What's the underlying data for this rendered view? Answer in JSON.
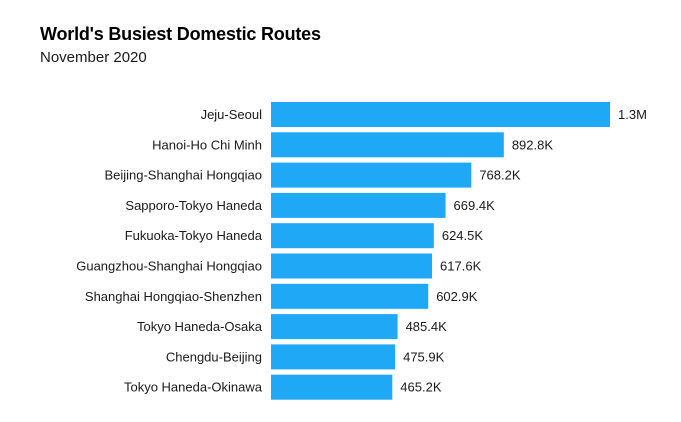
{
  "chart_data": {
    "type": "bar",
    "orientation": "horizontal",
    "title": "World's Busiest Domestic Routes",
    "subtitle": "November 2020",
    "categories": [
      "Jeju-Seoul",
      "Hanoi-Ho Chi Minh",
      "Beijing-Shanghai Hongqiao",
      "Sapporo-Tokyo Haneda",
      "Fukuoka-Tokyo Haneda",
      "Guangzhou-Shanghai Hongqiao",
      "Shanghai Hongqiao-Shenzhen",
      "Tokyo Haneda-Osaka",
      "Chengdu-Beijing",
      "Tokyo Haneda-Okinawa"
    ],
    "values": [
      1300000,
      892800,
      768200,
      669400,
      624500,
      617600,
      602900,
      485400,
      475900,
      465200
    ],
    "data_labels": [
      "1.3M",
      "892.8K",
      "768.2K",
      "669.4K",
      "624.5K",
      "617.6K",
      "602.9K",
      "485.4K",
      "475.9K",
      "465.2K"
    ],
    "bar_color": "#1ea8f5",
    "xlim": [
      0,
      1300000
    ],
    "grid": false,
    "legend": "none"
  }
}
